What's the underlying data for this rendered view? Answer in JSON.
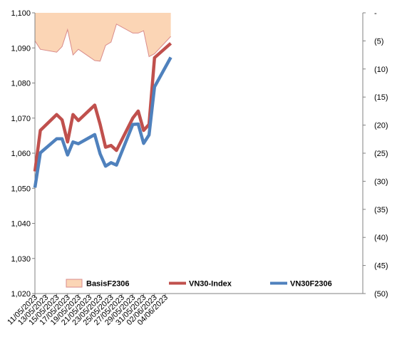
{
  "chart_data": {
    "type": "line",
    "colors": {
      "basis_fill": "#FBD5B5",
      "basis_stroke": "#D98B8B",
      "vn30_index": "#C0504D",
      "vn30f": "#4F81BD"
    },
    "dates": [
      "11/05/2023",
      "12/05/2023",
      "15/05/2023",
      "16/05/2023",
      "17/05/2023",
      "18/05/2023",
      "19/05/2023",
      "22/05/2023",
      "23/05/2023",
      "24/05/2023",
      "25/05/2023",
      "26/05/2023",
      "29/05/2023",
      "30/05/2023",
      "31/05/2023",
      "01/06/2023",
      "02/06/2023",
      "05/06/2023"
    ],
    "x_tick_labels": [
      "11/05/2023",
      "13/05/2023",
      "15/05/2023",
      "17/05/2023",
      "19/05/2023",
      "21/05/2023",
      "23/05/2023",
      "25/05/2023",
      "27/05/2023",
      "29/05/2023",
      "31/05/2023",
      "02/06/2023",
      "04/06/2023"
    ],
    "y_left": {
      "ylim": [
        1020,
        1100
      ],
      "tick_labels": [
        "1,020",
        "1,030",
        "1,040",
        "1,050",
        "1,060",
        "1,070",
        "1,080",
        "1,090",
        "1,100"
      ]
    },
    "y_right": {
      "ylim": [
        -50,
        0
      ],
      "reversed": true,
      "tick_labels": [
        "-",
        "(5)",
        "(10)",
        "(15)",
        "(20)",
        "(25)",
        "(30)",
        "(35)",
        "(40)",
        "(45)",
        "(50)"
      ]
    },
    "series": [
      {
        "name": "BasisF2306",
        "type": "area",
        "axis": "right",
        "values": [
          -5,
          -6.5,
          -7,
          -6,
          -3,
          -7.5,
          -6.5,
          -8.5,
          -8.6,
          -5.8,
          -5.2,
          -2,
          -3.6,
          -3.6,
          -3.2,
          -7.8,
          -7.3,
          -4.2
        ]
      },
      {
        "name": "VN30-Index",
        "type": "line",
        "axis": "left",
        "values": [
          1054.8,
          1066.5,
          1071,
          1069.5,
          1063.2,
          1071,
          1069.3,
          1073.7,
          1068.2,
          1061.7,
          1062.2,
          1060.8,
          1070,
          1072,
          1066.5,
          1068.2,
          1087.2,
          1091.3
        ]
      },
      {
        "name": "VN30F2306",
        "type": "line",
        "axis": "left",
        "values": [
          1050.2,
          1060.1,
          1064.1,
          1064.1,
          1059.5,
          1063.2,
          1062.7,
          1065.3,
          1059.8,
          1056.3,
          1057.3,
          1056.6,
          1068.2,
          1068.3,
          1062.8,
          1065.2,
          1078.9,
          1087.3
        ]
      }
    ],
    "legend": {
      "position": "bottom-inside",
      "entries": [
        "BasisF2306",
        "VN30-Index",
        "VN30F2306"
      ]
    },
    "grid": false
  }
}
